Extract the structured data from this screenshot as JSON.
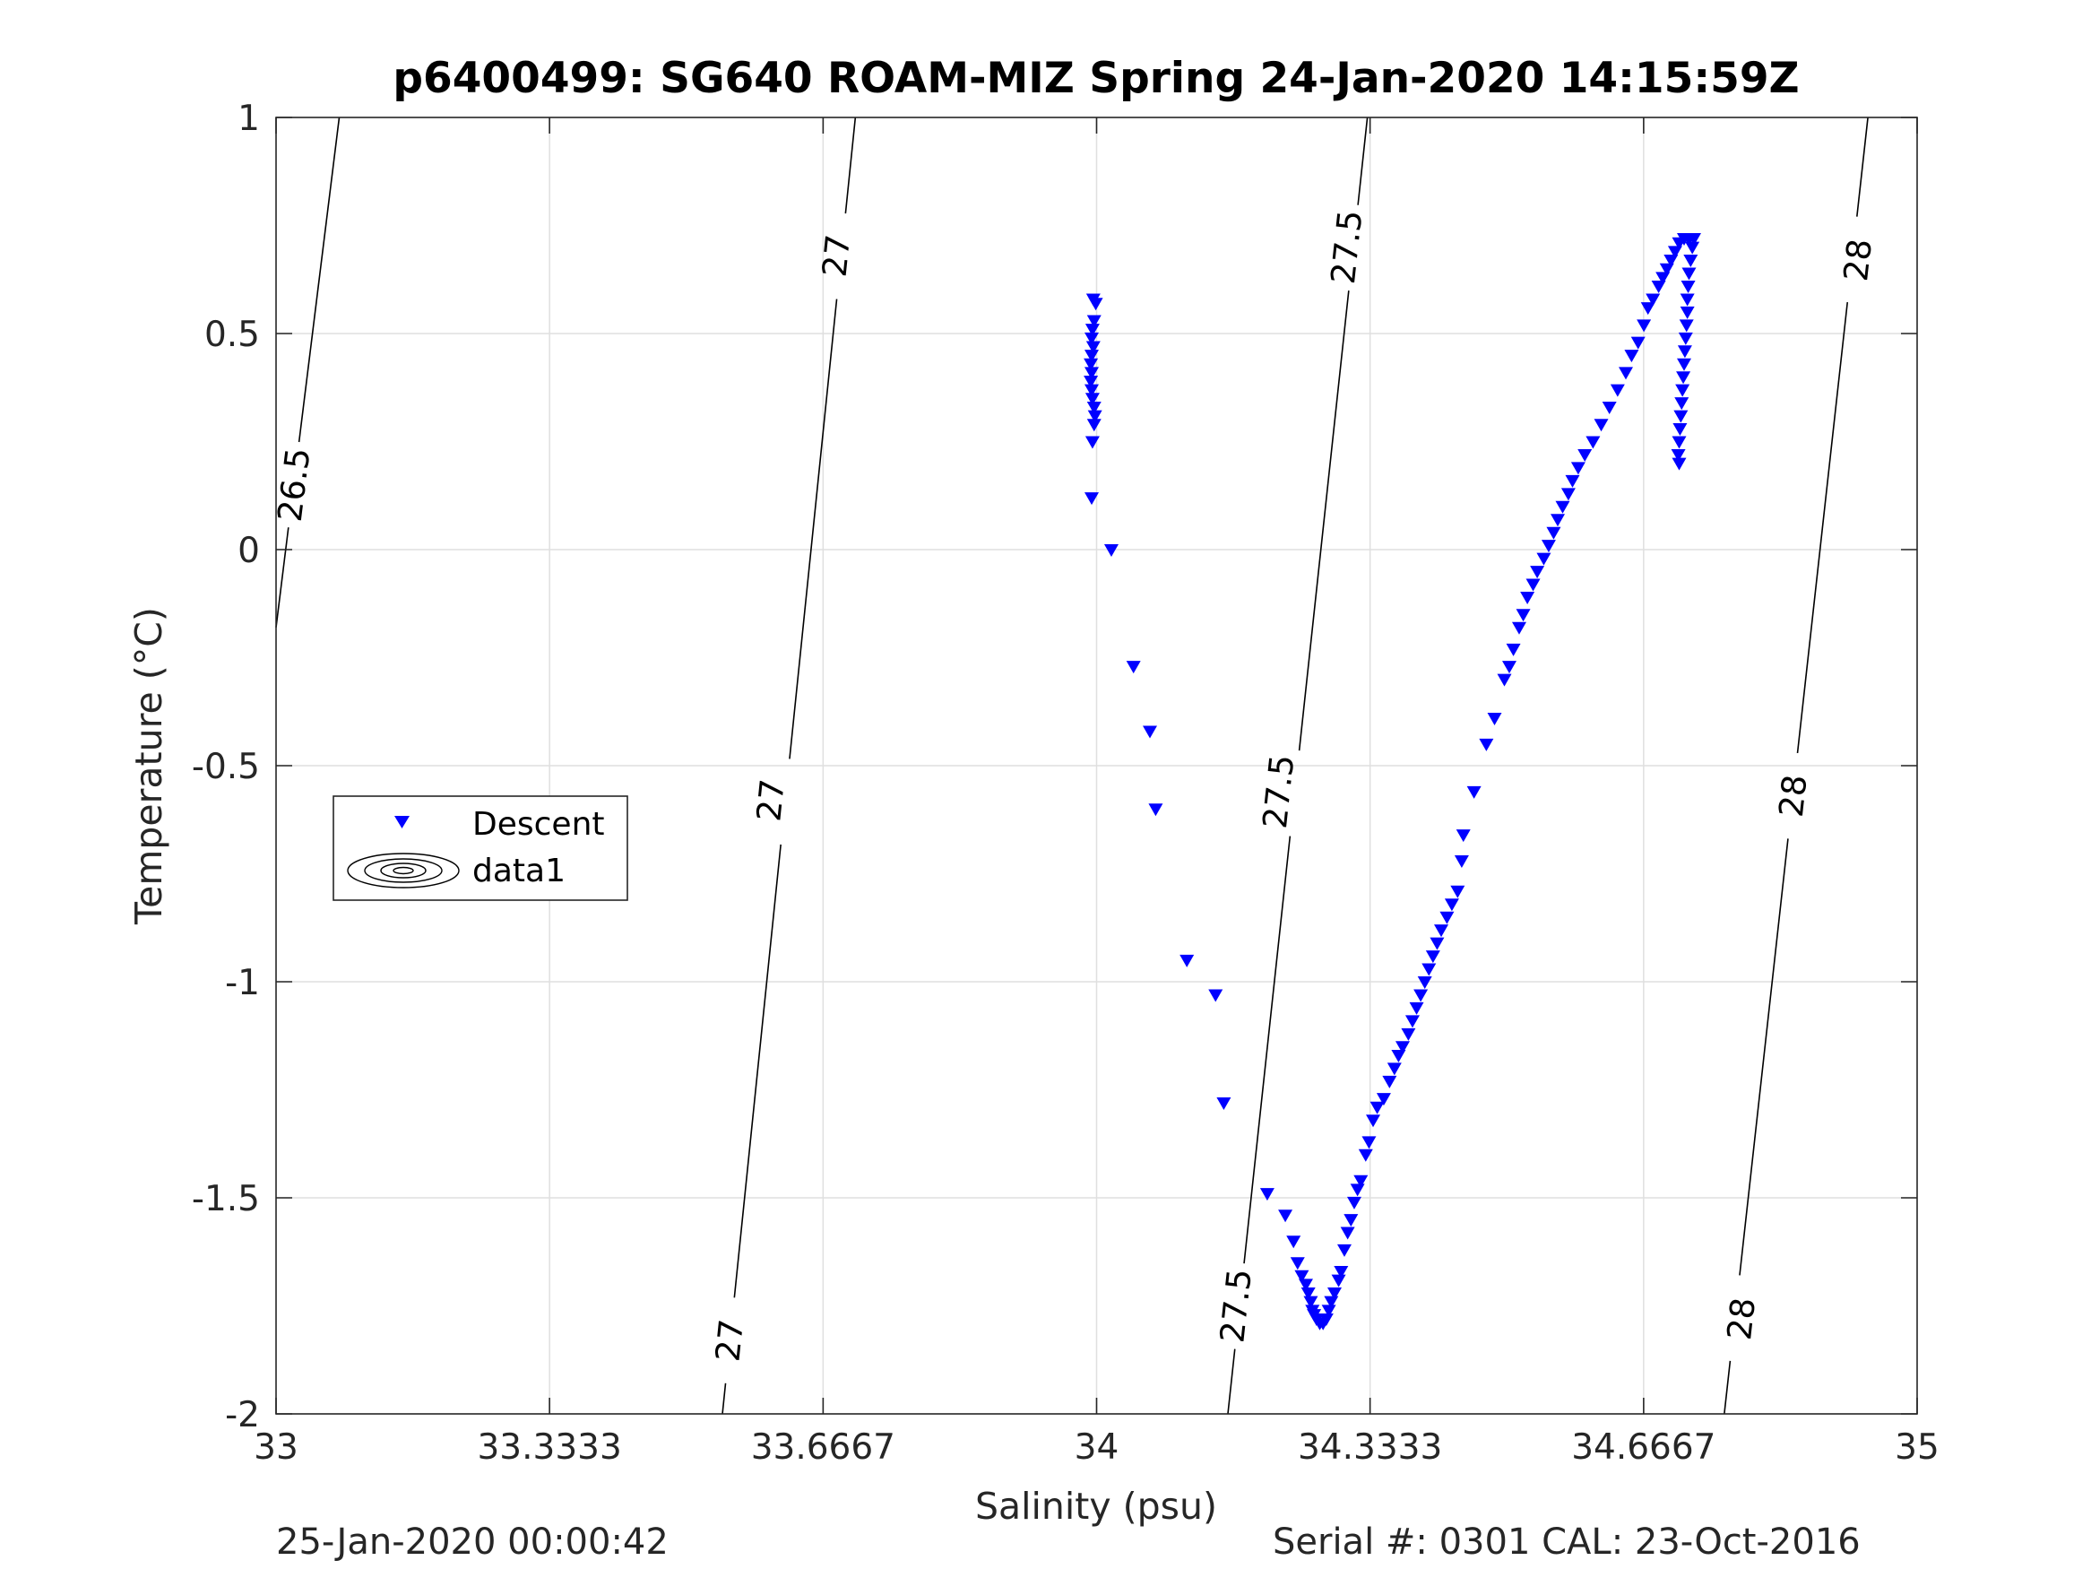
{
  "chart_data": {
    "type": "scatter",
    "title": "p6400499: SG640 ROAM-MIZ Spring 24-Jan-2020 14:15:59Z",
    "xlabel": "Salinity (psu)",
    "ylabel": "Temperature (°C)",
    "xlim": [
      33,
      35
    ],
    "ylim": [
      -2,
      1
    ],
    "xticks": [
      33,
      33.3333,
      33.6667,
      34,
      34.3333,
      34.6667,
      35
    ],
    "xtick_labels": [
      "33",
      "33.3333",
      "33.6667",
      "34",
      "34.3333",
      "34.6667",
      "35"
    ],
    "yticks": [
      -2,
      -1.5,
      -1,
      -0.5,
      0,
      0.5,
      1
    ],
    "ytick_labels": [
      "-2",
      "-1.5",
      "-1",
      "-0.5",
      "0",
      "0.5",
      "1"
    ],
    "grid": true,
    "legend": {
      "placement": "middle-left",
      "entries": [
        "Descent",
        "data1"
      ]
    },
    "series": [
      {
        "name": "Descent",
        "marker": "triangle-down",
        "color": "#0000ff",
        "points": [
          [
            33.996,
            0.58
          ],
          [
            33.999,
            0.57
          ],
          [
            33.997,
            0.53
          ],
          [
            33.995,
            0.51
          ],
          [
            33.994,
            0.49
          ],
          [
            33.996,
            0.47
          ],
          [
            33.994,
            0.45
          ],
          [
            33.993,
            0.43
          ],
          [
            33.994,
            0.41
          ],
          [
            33.993,
            0.39
          ],
          [
            33.994,
            0.37
          ],
          [
            33.995,
            0.35
          ],
          [
            33.997,
            0.33
          ],
          [
            33.998,
            0.31
          ],
          [
            33.997,
            0.29
          ],
          [
            33.995,
            0.25
          ],
          [
            33.994,
            0.12
          ],
          [
            34.018,
            0.0
          ],
          [
            34.045,
            -0.27
          ],
          [
            34.065,
            -0.42
          ],
          [
            34.072,
            -0.6
          ],
          [
            34.11,
            -0.95
          ],
          [
            34.145,
            -1.03
          ],
          [
            34.155,
            -1.28
          ],
          [
            34.208,
            -1.49
          ],
          [
            34.23,
            -1.54
          ],
          [
            34.24,
            -1.6
          ],
          [
            34.245,
            -1.65
          ],
          [
            34.25,
            -1.68
          ],
          [
            34.255,
            -1.7
          ],
          [
            34.258,
            -1.72
          ],
          [
            34.261,
            -1.74
          ],
          [
            34.263,
            -1.76
          ],
          [
            34.265,
            -1.77
          ],
          [
            34.268,
            -1.78
          ],
          [
            34.272,
            -1.79
          ],
          [
            34.276,
            -1.79
          ],
          [
            34.28,
            -1.78
          ],
          [
            34.283,
            -1.76
          ],
          [
            34.286,
            -1.74
          ],
          [
            34.29,
            -1.72
          ],
          [
            34.295,
            -1.69
          ],
          [
            34.298,
            -1.67
          ],
          [
            34.302,
            -1.62
          ],
          [
            34.306,
            -1.58
          ],
          [
            34.31,
            -1.55
          ],
          [
            34.314,
            -1.51
          ],
          [
            34.318,
            -1.48
          ],
          [
            34.322,
            -1.46
          ],
          [
            34.328,
            -1.4
          ],
          [
            34.332,
            -1.37
          ],
          [
            34.337,
            -1.32
          ],
          [
            34.342,
            -1.29
          ],
          [
            34.35,
            -1.27
          ],
          [
            34.357,
            -1.23
          ],
          [
            34.363,
            -1.2
          ],
          [
            34.368,
            -1.17
          ],
          [
            34.373,
            -1.15
          ],
          [
            34.38,
            -1.12
          ],
          [
            34.385,
            -1.09
          ],
          [
            34.39,
            -1.06
          ],
          [
            34.395,
            -1.03
          ],
          [
            34.4,
            -1.0
          ],
          [
            34.405,
            -0.97
          ],
          [
            34.41,
            -0.94
          ],
          [
            34.415,
            -0.91
          ],
          [
            34.42,
            -0.88
          ],
          [
            34.427,
            -0.85
          ],
          [
            34.433,
            -0.82
          ],
          [
            34.44,
            -0.79
          ],
          [
            34.445,
            -0.72
          ],
          [
            34.447,
            -0.66
          ],
          [
            34.46,
            -0.56
          ],
          [
            34.475,
            -0.45
          ],
          [
            34.485,
            -0.39
          ],
          [
            34.497,
            -0.3
          ],
          [
            34.503,
            -0.27
          ],
          [
            34.508,
            -0.23
          ],
          [
            34.515,
            -0.18
          ],
          [
            34.52,
            -0.15
          ],
          [
            34.525,
            -0.11
          ],
          [
            34.532,
            -0.08
          ],
          [
            34.537,
            -0.05
          ],
          [
            34.545,
            -0.02
          ],
          [
            34.551,
            0.01
          ],
          [
            34.557,
            0.04
          ],
          [
            34.562,
            0.07
          ],
          [
            34.568,
            0.1
          ],
          [
            34.575,
            0.13
          ],
          [
            34.58,
            0.16
          ],
          [
            34.587,
            0.19
          ],
          [
            34.595,
            0.22
          ],
          [
            34.605,
            0.25
          ],
          [
            34.615,
            0.29
          ],
          [
            34.625,
            0.33
          ],
          [
            34.635,
            0.37
          ],
          [
            34.645,
            0.41
          ],
          [
            34.652,
            0.45
          ],
          [
            34.66,
            0.48
          ],
          [
            34.667,
            0.52
          ],
          [
            34.672,
            0.56
          ],
          [
            34.678,
            0.58
          ],
          [
            34.685,
            0.61
          ],
          [
            34.69,
            0.63
          ],
          [
            34.695,
            0.65
          ],
          [
            34.7,
            0.67
          ],
          [
            34.705,
            0.69
          ],
          [
            34.71,
            0.71
          ],
          [
            34.716,
            0.72
          ],
          [
            34.722,
            0.72
          ],
          [
            34.728,
            0.72
          ],
          [
            34.726,
            0.7
          ],
          [
            34.724,
            0.67
          ],
          [
            34.722,
            0.64
          ],
          [
            34.721,
            0.61
          ],
          [
            34.72,
            0.58
          ],
          [
            34.72,
            0.55
          ],
          [
            34.719,
            0.52
          ],
          [
            34.718,
            0.49
          ],
          [
            34.717,
            0.46
          ],
          [
            34.716,
            0.43
          ],
          [
            34.715,
            0.4
          ],
          [
            34.714,
            0.37
          ],
          [
            34.713,
            0.34
          ],
          [
            34.712,
            0.31
          ],
          [
            34.711,
            0.28
          ],
          [
            34.71,
            0.25
          ],
          [
            34.709,
            0.22
          ],
          [
            34.71,
            0.2
          ]
        ]
      },
      {
        "name": "data1",
        "type": "contour",
        "color": "#000000",
        "levels": [
          26.5,
          27,
          27.5,
          28
        ],
        "lines": [
          {
            "level": 26.5,
            "points": [
              [
                33.077,
                1.0
              ],
              [
                33.0,
                -0.18
              ]
            ],
            "labels": [
              [
                33.022,
                0.15
              ]
            ]
          },
          {
            "level": 27,
            "points": [
              [
                33.706,
                1.0
              ],
              [
                33.544,
                -2.0
              ]
            ],
            "labels": [
              [
                33.683,
                0.68
              ],
              [
                33.603,
                -0.58
              ],
              [
                33.553,
                -1.83
              ]
            ]
          },
          {
            "level": 27.5,
            "points": [
              [
                34.33,
                1.0
              ],
              [
                34.16,
                -2.0
              ]
            ],
            "labels": [
              [
                34.305,
                0.7
              ],
              [
                34.222,
                -0.56
              ],
              [
                34.17,
                -1.75
              ]
            ]
          },
          {
            "level": 28,
            "points": [
              [
                34.94,
                1.0
              ],
              [
                34.765,
                -2.0
              ]
            ],
            "labels": [
              [
                34.928,
                0.67
              ],
              [
                34.849,
                -0.57
              ],
              [
                34.786,
                -1.78
              ]
            ]
          }
        ]
      }
    ]
  },
  "footer": {
    "left": "25-Jan-2020 00:00:42",
    "right": "Serial #: 0301  CAL: 23-Oct-2016"
  }
}
